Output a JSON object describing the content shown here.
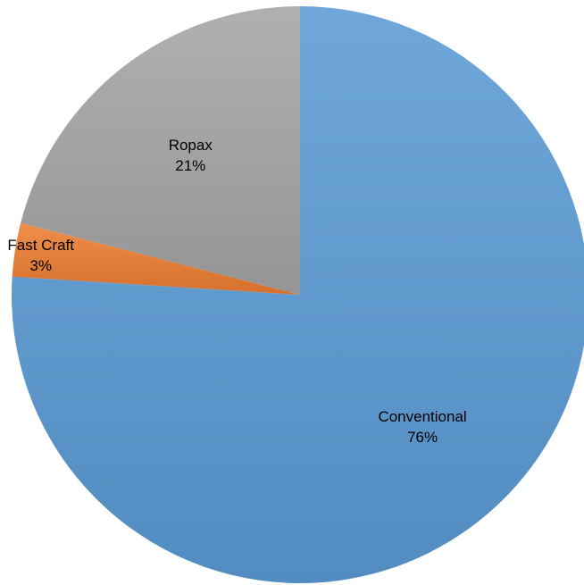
{
  "chart_data": {
    "type": "pie",
    "title": "",
    "start_angle_deg": 0,
    "direction": "clockwise",
    "slices": [
      {
        "label": "Conventional",
        "value": 76,
        "display": "76%",
        "color": "#5b9bd5"
      },
      {
        "label": "Fast Craft",
        "value": 3,
        "display": "3%",
        "color": "#ed7d31"
      },
      {
        "label": "Ropax",
        "value": 21,
        "display": "21%",
        "color": "#a5a5a5"
      }
    ]
  }
}
